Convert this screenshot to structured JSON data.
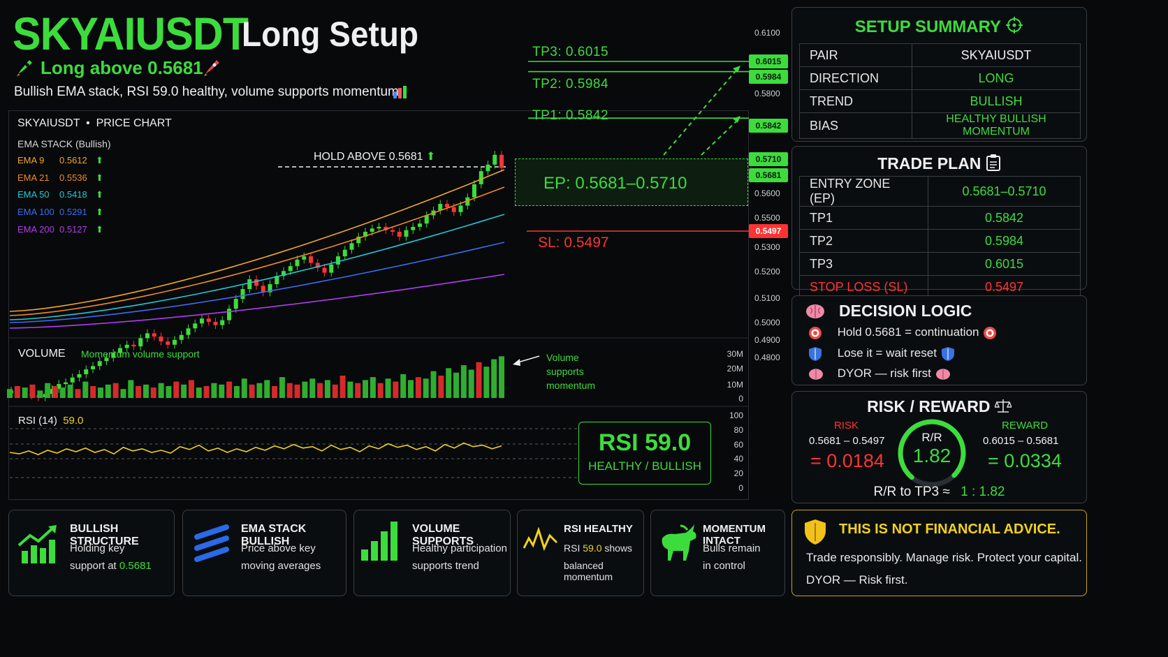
{
  "header": {
    "symbol": "SKYAIUSDT",
    "setup": "Long Setup",
    "subtitle": "Long above 0.5681",
    "description": "Bullish EMA stack, RSI 59.0 healthy, volume supports momentum"
  },
  "chart_panel": {
    "title": "SKYAIUSDT  •  PRICE CHART",
    "ema_title": "EMA STACK (Bullish)",
    "emas": [
      {
        "label": "EMA 9",
        "value": "0.5612",
        "color": "#f5a623"
      },
      {
        "label": "EMA 21",
        "value": "0.5536",
        "color": "#f08a24"
      },
      {
        "label": "EMA 50",
        "value": "0.5418",
        "color": "#22c9d6"
      },
      {
        "label": "EMA 100",
        "value": "0.5291",
        "color": "#3b6cf0"
      },
      {
        "label": "EMA 200",
        "value": "0.5127",
        "color": "#b43cf0"
      }
    ],
    "hold_label": "HOLD ABOVE 0.5681",
    "volume_title": "VOLUME",
    "volume_note": "Momentum volume support",
    "volume_annotation": "Volume supports momentum",
    "volume_ticks": [
      "30M",
      "20M",
      "10M",
      "0"
    ],
    "rsi_title": "RSI (14)",
    "rsi_value": "59.0",
    "rsi_ticks": [
      "100",
      "80",
      "60",
      "40",
      "20",
      "0"
    ],
    "rsi_box_value": "RSI 59.0",
    "rsi_box_label": "HEALTHY / BULLISH"
  },
  "levels": {
    "tp3": "TP3: 0.6015",
    "tp2": "TP2: 0.5984",
    "tp1": "TP1: 0.5842",
    "ep": "EP: 0.5681–0.5710",
    "sl": "SL: 0.5497",
    "tags": [
      "0.6015",
      "0.5984",
      "0.5842",
      "0.5710",
      "0.5681",
      "0.5497"
    ]
  },
  "price_axis": [
    "0.6100",
    "0.5800",
    "0.5600",
    "0.5500",
    "0.5300",
    "0.5200",
    "0.5100",
    "0.5000",
    "0.4900",
    "0.4800"
  ],
  "setup_summary": {
    "title": "SETUP SUMMARY",
    "rows": [
      {
        "k": "PAIR",
        "v": "SKYAIUSDT"
      },
      {
        "k": "DIRECTION",
        "v": "LONG"
      },
      {
        "k": "TREND",
        "v": "BULLISH"
      },
      {
        "k": "BIAS",
        "v": "HEALTHY BULLISH MOMENTUM"
      }
    ]
  },
  "trade_plan": {
    "title": "TRADE PLAN",
    "rows": [
      {
        "k": "ENTRY ZONE (EP)",
        "v": "0.5681–0.5710"
      },
      {
        "k": "TP1",
        "v": "0.5842"
      },
      {
        "k": "TP2",
        "v": "0.5984"
      },
      {
        "k": "TP3",
        "v": "0.6015"
      },
      {
        "k": "STOP LOSS (SL)",
        "v": "0.5497"
      }
    ]
  },
  "decision": {
    "title": "DECISION LOGIC",
    "items": [
      "Hold 0.5681 = continuation",
      "Lose it = wait reset",
      "DYOR — risk first"
    ]
  },
  "risk_reward": {
    "title": "RISK / REWARD",
    "risk_label": "RISK",
    "risk_range": "0.5681 – 0.5497",
    "risk_value": "= 0.0184",
    "reward_label": "REWARD",
    "reward_range": "0.6015 – 0.5681",
    "reward_value": "= 0.0334",
    "rr_label": "R/R",
    "rr_value": "1.82",
    "rr_line_prefix": "R/R to TP3  ≈",
    "rr_line_value": "1  :  1.82"
  },
  "cards": [
    {
      "title": "BULLISH STRUCTURE",
      "l1": "Holding key",
      "l2a": "support at ",
      "l2b": "0.5681"
    },
    {
      "title": "EMA STACK BULLISH",
      "l1": "Price above key",
      "l2a": "moving averages",
      "l2b": ""
    },
    {
      "title": "VOLUME SUPPORTS",
      "l1": "Healthy participation",
      "l2a": "supports trend",
      "l2b": ""
    },
    {
      "title": "RSI HEALTHY",
      "l1a": "RSI ",
      "l1b": "59.0",
      "l1c": " shows",
      "l2a": "balanced momentum",
      "l2b": ""
    },
    {
      "title": "MOMENTUM INTACT",
      "l1": "Bulls remain",
      "l2a": "in control",
      "l2b": ""
    }
  ],
  "disclaimer": {
    "title": "THIS IS NOT FINANCIAL ADVICE.",
    "line1": "Trade responsibly. Manage risk. Protect your capital.",
    "line2": "DYOR — Risk first."
  },
  "chart_data": {
    "type": "line",
    "title": "SKYAIUSDT • PRICE CHART",
    "ylim": [
      0.48,
      0.61
    ],
    "price_close": [
      0.501,
      0.5005,
      0.5,
      0.4995,
      0.499,
      0.5,
      0.5015,
      0.503,
      0.5035,
      0.505,
      0.506,
      0.5075,
      0.5085,
      0.51,
      0.511,
      0.5125,
      0.514,
      0.515,
      0.5145,
      0.517,
      0.5185,
      0.5175,
      0.516,
      0.515,
      0.5165,
      0.518,
      0.52,
      0.5215,
      0.523,
      0.522,
      0.521,
      0.5225,
      0.526,
      0.529,
      0.532,
      0.535,
      0.533,
      0.531,
      0.5335,
      0.536,
      0.5375,
      0.539,
      0.541,
      0.542,
      0.54,
      0.5385,
      0.537,
      0.5395,
      0.542,
      0.544,
      0.546,
      0.548,
      0.5495,
      0.5505,
      0.551,
      0.55,
      0.5495,
      0.548,
      0.55,
      0.551,
      0.552,
      0.5545,
      0.556,
      0.558,
      0.557,
      0.5555,
      0.5575,
      0.56,
      0.564,
      0.568,
      0.57,
      0.573,
      0.569
    ],
    "ema_200_path": [
      0.499,
      0.506,
      0.5127
    ],
    "levels": {
      "tp3": 0.6015,
      "tp2": 0.5984,
      "tp1": 0.5842,
      "ep_high": 0.571,
      "ep_low": 0.5681,
      "sl": 0.5497
    },
    "volume": [
      6,
      8,
      7,
      9,
      5,
      10,
      8,
      7,
      9,
      6,
      11,
      8,
      7,
      9,
      10,
      6,
      12,
      8,
      9,
      7,
      10,
      8,
      11,
      9,
      12,
      7,
      8,
      10,
      9,
      11,
      8,
      13,
      9,
      10,
      12,
      8,
      14,
      10,
      9,
      11,
      13,
      10,
      12,
      9,
      15,
      11,
      10,
      12,
      14,
      10,
      13,
      11,
      16,
      12,
      14,
      13,
      18,
      15,
      20,
      17,
      22,
      19,
      24,
      21,
      26,
      28
    ],
    "volume_colors": [
      "g",
      "r",
      "g",
      "r",
      "g",
      "g",
      "r",
      "g",
      "g",
      "r",
      "g",
      "r",
      "g",
      "g",
      "r",
      "g",
      "g",
      "r",
      "g",
      "r",
      "g",
      "g",
      "r",
      "g",
      "r",
      "g",
      "r",
      "g",
      "g",
      "r",
      "g",
      "g",
      "r",
      "g",
      "g",
      "r",
      "g",
      "r",
      "r",
      "g",
      "g",
      "r",
      "g",
      "r",
      "r",
      "g",
      "r",
      "g",
      "g",
      "r",
      "g",
      "r",
      "g",
      "g",
      "r",
      "g",
      "g",
      "r",
      "g",
      "g",
      "g",
      "g",
      "r",
      "g",
      "g",
      "g"
    ],
    "rsi": [
      50,
      48,
      52,
      47,
      53,
      49,
      55,
      51,
      56,
      50,
      54,
      48,
      57,
      52,
      55,
      50,
      53,
      49,
      58,
      54,
      60,
      52,
      56,
      50,
      55,
      51,
      57,
      53,
      59,
      55,
      61,
      56,
      58,
      52,
      60,
      54,
      57,
      51,
      59,
      55,
      62,
      57,
      60,
      54,
      58,
      52,
      61,
      56,
      63,
      58,
      60,
      55,
      59
    ],
    "rsi_value": 59.0,
    "rr_ratio": 1.82
  }
}
